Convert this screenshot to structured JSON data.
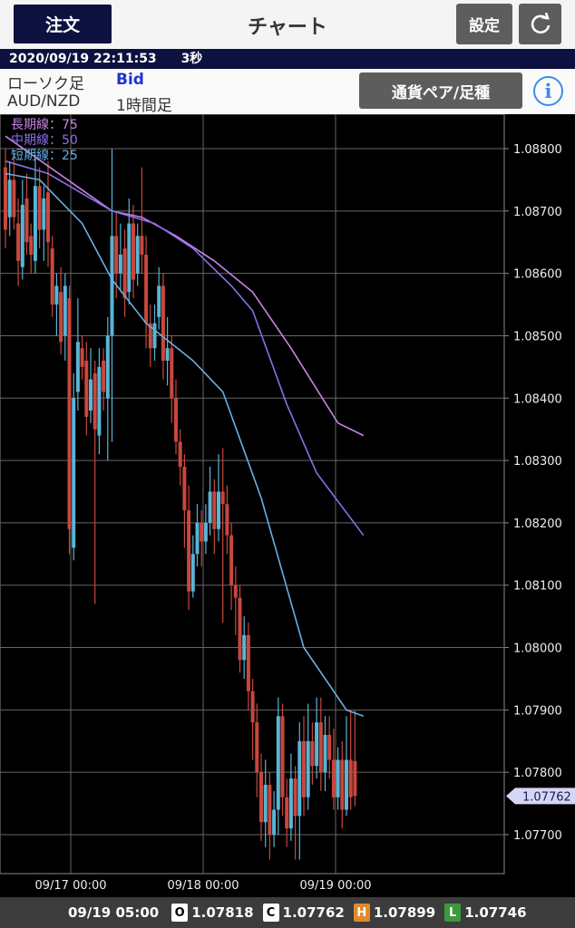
{
  "header": {
    "order_label": "注文",
    "title": "チャート",
    "settings_label": "設定",
    "refresh_icon": "refresh-icon"
  },
  "status": {
    "datetime": "2020/09/19 22:11:53",
    "interval": "3秒"
  },
  "info": {
    "chart_type": "ローソク足",
    "price_type": "Bid",
    "pair": "AUD/NZD",
    "timeframe": "1時間足",
    "pair_button_label": "通貨ペア/足種",
    "info_label": "i"
  },
  "legend": {
    "long": "長期線：75",
    "mid": "中期線：50",
    "short": "短期線：25"
  },
  "ohlc": {
    "time": "09/19 05:00",
    "o_label": "O",
    "o_value": "1.07818",
    "c_label": "C",
    "c_value": "1.07762",
    "h_label": "H",
    "h_value": "1.07899",
    "l_label": "L",
    "l_value": "1.07746"
  },
  "colors": {
    "bull": "#5ab4d6",
    "bear": "#c8473d",
    "ma_long": "#c884e6",
    "ma_mid": "#8a6fe8",
    "ma_short": "#67b0e6",
    "current_price_tag": "#d6d6f5"
  },
  "chart_data": {
    "type": "candlestick",
    "ylim": [
      1.0765,
      1.0885
    ],
    "y_ticks": [
      "1.08800",
      "1.08700",
      "1.08600",
      "1.08500",
      "1.08400",
      "1.08300",
      "1.08200",
      "1.08100",
      "1.08000",
      "1.07900",
      "1.07800",
      "1.07700"
    ],
    "x_ticks": [
      "09/17 00:00",
      "09/18 00:00",
      "09/19 00:00"
    ],
    "current_price": "1.07762",
    "candles": [
      [
        1.0877,
        1.0867,
        1.088,
        1.0864
      ],
      [
        1.0869,
        1.0875,
        1.0878,
        1.0866
      ],
      [
        1.0875,
        1.0869,
        1.0879,
        1.0867
      ],
      [
        1.0868,
        1.0862,
        1.0872,
        1.0858
      ],
      [
        1.0861,
        1.0871,
        1.0875,
        1.0859
      ],
      [
        1.0872,
        1.0865,
        1.0876,
        1.0863
      ],
      [
        1.0866,
        1.0863,
        1.0868,
        1.086
      ],
      [
        1.0862,
        1.0874,
        1.0879,
        1.086
      ],
      [
        1.0874,
        1.0867,
        1.0877,
        1.0864
      ],
      [
        1.0867,
        1.0872,
        1.0874,
        1.0862
      ],
      [
        1.0873,
        1.0865,
        1.0878,
        1.0861
      ],
      [
        1.0864,
        1.0855,
        1.0866,
        1.0853
      ],
      [
        1.0855,
        1.0858,
        1.086,
        1.085
      ],
      [
        1.0857,
        1.0849,
        1.0861,
        1.0847
      ],
      [
        1.085,
        1.0858,
        1.086,
        1.0846
      ],
      [
        1.0856,
        1.0819,
        1.0858,
        1.0815
      ],
      [
        1.0816,
        1.084,
        1.0844,
        1.0814
      ],
      [
        1.0841,
        1.0849,
        1.0856,
        1.0838
      ],
      [
        1.0848,
        1.0845,
        1.085,
        1.0843
      ],
      [
        1.0846,
        1.0837,
        1.0849,
        1.0834
      ],
      [
        1.0838,
        1.0843,
        1.0848,
        1.0836
      ],
      [
        1.0844,
        1.0835,
        1.0846,
        1.0807
      ],
      [
        1.0834,
        1.0845,
        1.0848,
        1.0831
      ],
      [
        1.0846,
        1.0841,
        1.0848,
        1.0838
      ],
      [
        1.084,
        1.085,
        1.0853,
        1.083
      ],
      [
        1.085,
        1.0866,
        1.088,
        1.0833
      ],
      [
        1.0866,
        1.086,
        1.087,
        1.0856
      ],
      [
        1.086,
        1.0863,
        1.0868,
        1.0857
      ],
      [
        1.0864,
        1.0856,
        1.0867,
        1.0853
      ],
      [
        1.0857,
        1.0868,
        1.0872,
        1.0855
      ],
      [
        1.0868,
        1.0859,
        1.0871,
        1.0856
      ],
      [
        1.086,
        1.0866,
        1.0868,
        1.0858
      ],
      [
        1.0866,
        1.0863,
        1.0877,
        1.086
      ],
      [
        1.0863,
        1.0852,
        1.0866,
        1.0848
      ],
      [
        1.0852,
        1.0848,
        1.0855,
        1.0845
      ],
      [
        1.0848,
        1.0852,
        1.0855,
        1.0846
      ],
      [
        1.0853,
        1.0858,
        1.0861,
        1.0851
      ],
      [
        1.0858,
        1.0846,
        1.086,
        1.0843
      ],
      [
        1.0846,
        1.0848,
        1.0853,
        1.0842
      ],
      [
        1.0848,
        1.084,
        1.085,
        1.0836
      ],
      [
        1.084,
        1.0833,
        1.0843,
        1.0831
      ],
      [
        1.0833,
        1.0829,
        1.0835,
        1.0826
      ],
      [
        1.0829,
        1.0822,
        1.0831,
        1.0816
      ],
      [
        1.0822,
        1.0809,
        1.0826,
        1.0806
      ],
      [
        1.0809,
        1.0815,
        1.0818,
        1.0808
      ],
      [
        1.0815,
        1.082,
        1.0823,
        1.0813
      ],
      [
        1.082,
        1.0817,
        1.0822,
        1.0813
      ],
      [
        1.0817,
        1.082,
        1.0823,
        1.0815
      ],
      [
        1.082,
        1.0825,
        1.0829,
        1.0818
      ],
      [
        1.0825,
        1.0819,
        1.0827,
        1.0815
      ],
      [
        1.0819,
        1.0825,
        1.0831,
        1.0817
      ],
      [
        1.0825,
        1.0823,
        1.0832,
        1.0804
      ],
      [
        1.0823,
        1.0818,
        1.0826,
        1.0815
      ],
      [
        1.0818,
        1.081,
        1.082,
        1.0806
      ],
      [
        1.081,
        1.0808,
        1.0813,
        1.0802
      ],
      [
        1.0808,
        1.0798,
        1.081,
        1.0796
      ],
      [
        1.0798,
        1.0802,
        1.0805,
        1.0795
      ],
      [
        1.0802,
        1.0793,
        1.0804,
        1.079
      ],
      [
        1.0793,
        1.0788,
        1.0795,
        1.0782
      ],
      [
        1.0788,
        1.078,
        1.0791,
        1.0776
      ],
      [
        1.078,
        1.0772,
        1.0783,
        1.0769
      ],
      [
        1.0772,
        1.0778,
        1.0782,
        1.0768
      ],
      [
        1.0778,
        1.077,
        1.078,
        1.0766
      ],
      [
        1.077,
        1.0774,
        1.0777,
        1.0768
      ],
      [
        1.0774,
        1.0789,
        1.0792,
        1.077
      ],
      [
        1.0789,
        1.0776,
        1.0791,
        1.0773
      ],
      [
        1.0776,
        1.0771,
        1.0779,
        1.0768
      ],
      [
        1.0771,
        1.0779,
        1.0783,
        1.0769
      ],
      [
        1.0779,
        1.0773,
        1.0781,
        1.0766
      ],
      [
        1.0773,
        1.0785,
        1.0788,
        1.0766
      ],
      [
        1.0785,
        1.0776,
        1.0789,
        1.0773
      ],
      [
        1.0776,
        1.0785,
        1.0791,
        1.0774
      ],
      [
        1.0785,
        1.0781,
        1.0788,
        1.0778
      ],
      [
        1.0781,
        1.0788,
        1.0792,
        1.0779
      ],
      [
        1.0788,
        1.078,
        1.0792,
        1.0777
      ],
      [
        1.078,
        1.0786,
        1.0789,
        1.0777
      ],
      [
        1.0786,
        1.0782,
        1.0789,
        1.0779
      ],
      [
        1.0782,
        1.0776,
        1.0787,
        1.0774
      ],
      [
        1.0776,
        1.0782,
        1.0784,
        1.0774
      ],
      [
        1.0782,
        1.0774,
        1.0785,
        1.0771
      ],
      [
        1.0774,
        1.0782,
        1.0789,
        1.0773
      ],
      [
        1.0782,
        1.0776,
        1.079,
        1.0774
      ],
      [
        1.07818,
        1.07762,
        1.07899,
        1.07746
      ]
    ],
    "ma_long": [
      [
        0,
        1.0882
      ],
      [
        25,
        1.087
      ],
      [
        32,
        1.0869
      ],
      [
        40,
        1.0866
      ],
      [
        49,
        1.0862
      ],
      [
        58,
        1.0857
      ],
      [
        67,
        1.0848
      ],
      [
        78,
        1.0836
      ],
      [
        84,
        1.0834
      ]
    ],
    "ma_mid": [
      [
        0,
        1.0878
      ],
      [
        10,
        1.0876
      ],
      [
        25,
        1.087
      ],
      [
        35,
        1.0868
      ],
      [
        44,
        1.0864
      ],
      [
        53,
        1.0858
      ],
      [
        58,
        1.0854
      ],
      [
        66,
        1.0839
      ],
      [
        73,
        1.0828
      ],
      [
        84,
        1.0818
      ]
    ],
    "ma_short": [
      [
        0,
        1.0876
      ],
      [
        8,
        1.0875
      ],
      [
        18,
        1.0868
      ],
      [
        25,
        1.0859
      ],
      [
        33,
        1.0852
      ],
      [
        44,
        1.0846
      ],
      [
        51,
        1.0841
      ],
      [
        60,
        1.0824
      ],
      [
        70,
        1.08
      ],
      [
        80,
        1.079
      ],
      [
        84,
        1.0789
      ]
    ]
  }
}
